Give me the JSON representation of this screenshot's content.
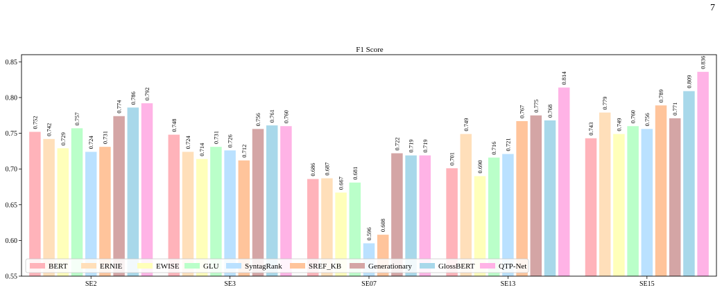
{
  "page_number": "7",
  "chart_data": {
    "type": "bar",
    "title": "F1 Score",
    "xlabel": "",
    "ylabel": "",
    "ylim": [
      0.55,
      0.86
    ],
    "yticks": [
      "0.55",
      "0.60",
      "0.65",
      "0.70",
      "0.75",
      "0.80",
      "0.85"
    ],
    "grid": false,
    "legend_position": "lower-left",
    "categories": [
      "SE2",
      "SE3",
      "SE07",
      "SE13",
      "SE15"
    ],
    "series": [
      {
        "name": "BERT",
        "color": "#FFB3BA",
        "values": [
          0.752,
          0.748,
          0.686,
          0.701,
          0.743
        ],
        "labels": [
          "0.752",
          "0.748",
          "0.686",
          "0.701",
          "0.743"
        ]
      },
      {
        "name": "ERNIE",
        "color": "#FFDFBA",
        "values": [
          0.742,
          0.724,
          0.687,
          0.749,
          0.779
        ],
        "labels": [
          "0.742",
          "0.724",
          "0.687",
          "0.749",
          "0.779"
        ]
      },
      {
        "name": "EWISE",
        "color": "#FFFFBA",
        "values": [
          0.729,
          0.714,
          0.667,
          0.69,
          0.749
        ],
        "labels": [
          "0.729",
          "0.714",
          "0.667",
          "0.690",
          "0.749"
        ]
      },
      {
        "name": "GLU",
        "color": "#BAFFC9",
        "values": [
          0.757,
          0.731,
          0.681,
          0.716,
          0.76
        ],
        "labels": [
          "0.757",
          "0.731",
          "0.681",
          "0.716",
          "0.760"
        ]
      },
      {
        "name": "SyntagRank",
        "color": "#BAE1FF",
        "values": [
          0.724,
          0.726,
          0.596,
          0.721,
          0.756
        ],
        "labels": [
          "0.724",
          "0.726",
          "0.596",
          "0.721",
          "0.756"
        ]
      },
      {
        "name": "SREF_KB",
        "color": "#FFC49B",
        "values": [
          0.731,
          0.712,
          0.608,
          0.767,
          0.789
        ],
        "labels": [
          "0.731",
          "0.712",
          "0.608",
          "0.767",
          "0.789"
        ]
      },
      {
        "name": "Generationary",
        "color": "#D4A5A5",
        "values": [
          0.774,
          0.756,
          0.722,
          0.775,
          0.771
        ],
        "labels": [
          "0.774",
          "0.756",
          "0.722",
          "0.775",
          "0.771"
        ]
      },
      {
        "name": "GlossBERT",
        "color": "#A8D8EA",
        "values": [
          0.786,
          0.761,
          0.719,
          0.768,
          0.809
        ],
        "labels": [
          "0.786",
          "0.761",
          "0.719",
          "0.768",
          "0.809"
        ]
      },
      {
        "name": "QTP-Net",
        "color": "#FFB3E6",
        "values": [
          0.792,
          0.76,
          0.719,
          0.814,
          0.836
        ],
        "labels": [
          "0.792",
          "0.760",
          "0.719",
          "0.814",
          "0.836"
        ]
      }
    ]
  }
}
